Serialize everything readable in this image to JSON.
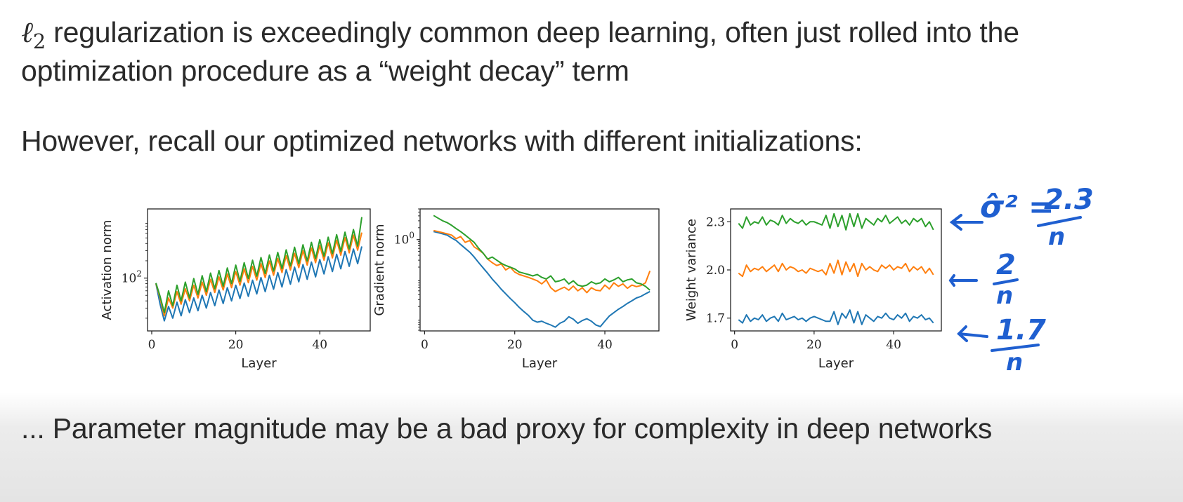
{
  "slide": {
    "line1_symbol": "ℓ",
    "line1_subscript": "2",
    "line1_rest": " regularization is exceedingly common deep learning, often just rolled into the",
    "line2": "optimization procedure as a “weight decay” term",
    "line3": "However, recall our optimized networks with different initializations:",
    "bottom_line": "... Parameter magnitude may be a bad proxy for complexity in deep networks"
  },
  "colors": {
    "blue": "#1f77b4",
    "orange": "#ff7f0e",
    "green": "#2ca02c",
    "annotation": "#1f5fd0"
  },
  "annotations": {
    "green": {
      "lhs": "σ̂² =",
      "num": "2.3",
      "den": "n"
    },
    "orange": {
      "num": "2",
      "den": "n"
    },
    "blue": {
      "num": "1.7",
      "den": "n"
    }
  },
  "chart_data": [
    {
      "type": "line",
      "title": "",
      "xlabel": "Layer",
      "ylabel": "Activation norm",
      "yscale": "log",
      "xlim": [
        -1,
        52
      ],
      "ylim": [
        12,
        1600
      ],
      "xticks": [
        0,
        20,
        40
      ],
      "yticks": [
        {
          "value": 100,
          "base": "10",
          "exp": "2"
        }
      ],
      "grid": false,
      "x": [
        1,
        2,
        3,
        4,
        5,
        6,
        7,
        8,
        9,
        10,
        11,
        12,
        13,
        14,
        15,
        16,
        17,
        18,
        19,
        20,
        21,
        22,
        23,
        24,
        25,
        26,
        27,
        28,
        29,
        30,
        31,
        32,
        33,
        34,
        35,
        36,
        37,
        38,
        39,
        40,
        41,
        42,
        43,
        44,
        45,
        46,
        47,
        48,
        49,
        50
      ],
      "series": [
        {
          "color": "blue",
          "values": [
            80,
            35,
            18,
            32,
            20,
            38,
            22,
            42,
            25,
            45,
            27,
            50,
            30,
            56,
            33,
            62,
            36,
            68,
            40,
            75,
            44,
            82,
            48,
            92,
            53,
            102,
            58,
            112,
            64,
            125,
            70,
            140,
            78,
            155,
            86,
            172,
            95,
            190,
            105,
            210,
            118,
            235,
            130,
            260,
            145,
            290,
            160,
            320,
            178,
            355
          ]
        },
        {
          "color": "orange",
          "values": [
            80,
            45,
            22,
            45,
            30,
            58,
            35,
            65,
            40,
            75,
            45,
            85,
            50,
            95,
            56,
            105,
            62,
            118,
            68,
            130,
            75,
            145,
            83,
            160,
            92,
            178,
            102,
            198,
            112,
            220,
            125,
            245,
            138,
            270,
            152,
            300,
            168,
            335,
            185,
            370,
            205,
            410,
            225,
            455,
            250,
            505,
            275,
            560,
            305,
            620
          ]
        },
        {
          "color": "green",
          "values": [
            82,
            48,
            25,
            60,
            33,
            75,
            40,
            85,
            45,
            98,
            52,
            110,
            58,
            122,
            65,
            135,
            72,
            150,
            80,
            168,
            88,
            185,
            98,
            205,
            108,
            228,
            120,
            252,
            132,
            280,
            146,
            310,
            162,
            345,
            178,
            380,
            198,
            420,
            218,
            465,
            240,
            515,
            265,
            570,
            292,
            630,
            322,
            700,
            360,
            1150
          ]
        }
      ]
    },
    {
      "type": "line",
      "title": "",
      "xlabel": "Layer",
      "ylabel": "Gradient norm",
      "yscale": "log",
      "xlim": [
        -1,
        52
      ],
      "ylim": [
        0.0048,
        6
      ],
      "xticks": [
        0,
        20,
        40
      ],
      "yticks": [
        {
          "value": 1,
          "base": "10",
          "exp": "0"
        }
      ],
      "grid": false,
      "x": [
        2,
        3,
        4,
        5,
        6,
        7,
        8,
        9,
        10,
        11,
        12,
        13,
        14,
        15,
        16,
        17,
        18,
        19,
        20,
        21,
        22,
        23,
        24,
        25,
        26,
        27,
        28,
        29,
        30,
        31,
        32,
        33,
        34,
        35,
        36,
        37,
        38,
        39,
        40,
        41,
        42,
        43,
        44,
        45,
        46,
        47,
        48,
        49,
        50
      ],
      "series": [
        {
          "color": "blue",
          "values": [
            1.6,
            1.5,
            1.4,
            1.3,
            1.1,
            0.95,
            0.75,
            0.6,
            0.48,
            0.36,
            0.26,
            0.19,
            0.14,
            0.1,
            0.075,
            0.055,
            0.042,
            0.032,
            0.025,
            0.019,
            0.015,
            0.012,
            0.009,
            0.008,
            0.0085,
            0.0075,
            0.0068,
            0.006,
            0.0075,
            0.0085,
            0.011,
            0.0095,
            0.0075,
            0.0088,
            0.0098,
            0.0085,
            0.0068,
            0.0062,
            0.0085,
            0.0115,
            0.014,
            0.017,
            0.02,
            0.024,
            0.028,
            0.033,
            0.036,
            0.042,
            0.048
          ]
        },
        {
          "color": "orange",
          "values": [
            1.7,
            1.6,
            1.5,
            1.4,
            1.3,
            1.05,
            1.2,
            0.85,
            0.95,
            0.65,
            0.55,
            0.45,
            0.32,
            0.26,
            0.22,
            0.24,
            0.17,
            0.2,
            0.15,
            0.13,
            0.12,
            0.11,
            0.1,
            0.09,
            0.075,
            0.095,
            0.06,
            0.048,
            0.055,
            0.062,
            0.052,
            0.066,
            0.05,
            0.06,
            0.045,
            0.06,
            0.052,
            0.05,
            0.07,
            0.056,
            0.08,
            0.065,
            0.075,
            0.058,
            0.07,
            0.064,
            0.068,
            0.08,
            0.16
          ]
        },
        {
          "color": "green",
          "values": [
            4.1,
            3.5,
            3.0,
            2.7,
            2.3,
            1.9,
            1.6,
            1.3,
            1.05,
            0.85,
            0.6,
            0.45,
            0.32,
            0.36,
            0.3,
            0.25,
            0.22,
            0.2,
            0.18,
            0.15,
            0.14,
            0.13,
            0.12,
            0.13,
            0.11,
            0.1,
            0.12,
            0.085,
            0.09,
            0.1,
            0.075,
            0.09,
            0.07,
            0.065,
            0.07,
            0.085,
            0.075,
            0.08,
            0.1,
            0.085,
            0.095,
            0.11,
            0.085,
            0.095,
            0.1,
            0.08,
            0.075,
            0.065,
            0.052
          ]
        }
      ]
    },
    {
      "type": "line",
      "title": "",
      "xlabel": "Layer",
      "ylabel": "Weight variance",
      "yscale": "linear",
      "xlim": [
        -1,
        52
      ],
      "ylim": [
        1.62,
        2.38
      ],
      "xticks": [
        0,
        20,
        40
      ],
      "yticks": [
        {
          "value": 1.7,
          "label": "1.7"
        },
        {
          "value": 2.0,
          "label": "2.0"
        },
        {
          "value": 2.3,
          "label": "2.3"
        }
      ],
      "grid": false,
      "x": [
        1,
        2,
        3,
        4,
        5,
        6,
        7,
        8,
        9,
        10,
        11,
        12,
        13,
        14,
        15,
        16,
        17,
        18,
        19,
        20,
        21,
        22,
        23,
        24,
        25,
        26,
        27,
        28,
        29,
        30,
        31,
        32,
        33,
        34,
        35,
        36,
        37,
        38,
        39,
        40,
        41,
        42,
        43,
        44,
        45,
        46,
        47,
        48,
        49,
        50
      ],
      "series": [
        {
          "color": "blue",
          "values": [
            1.69,
            1.67,
            1.72,
            1.68,
            1.7,
            1.69,
            1.72,
            1.68,
            1.7,
            1.71,
            1.68,
            1.73,
            1.69,
            1.7,
            1.71,
            1.69,
            1.7,
            1.68,
            1.7,
            1.71,
            1.7,
            1.69,
            1.68,
            1.68,
            1.74,
            1.66,
            1.73,
            1.7,
            1.75,
            1.67,
            1.74,
            1.66,
            1.72,
            1.7,
            1.68,
            1.71,
            1.7,
            1.73,
            1.7,
            1.69,
            1.72,
            1.7,
            1.73,
            1.68,
            1.71,
            1.7,
            1.72,
            1.69,
            1.7,
            1.67
          ]
        },
        {
          "color": "orange",
          "values": [
            1.98,
            1.96,
            2.03,
            1.99,
            2.01,
            2.0,
            2.02,
            1.99,
            2.01,
            2.03,
            1.99,
            2.04,
            2.0,
            2.02,
            2.01,
            1.99,
            2.0,
            1.98,
            2.01,
            2.0,
            1.99,
            2.0,
            1.97,
            2.04,
            1.98,
            2.06,
            1.97,
            2.05,
            1.99,
            2.04,
            1.96,
            2.04,
            2.0,
            2.02,
            2.0,
            1.99,
            2.03,
            2.01,
            2.03,
            2.0,
            2.02,
            2.01,
            2.04,
            1.99,
            2.02,
            2.0,
            2.02,
            1.98,
            2.01,
            1.97
          ]
        },
        {
          "color": "green",
          "values": [
            2.29,
            2.26,
            2.33,
            2.28,
            2.3,
            2.29,
            2.33,
            2.28,
            2.31,
            2.3,
            2.28,
            2.34,
            2.29,
            2.32,
            2.3,
            2.29,
            2.31,
            2.28,
            2.3,
            2.3,
            2.29,
            2.28,
            2.34,
            2.26,
            2.35,
            2.27,
            2.34,
            2.25,
            2.35,
            2.27,
            2.35,
            2.26,
            2.32,
            2.3,
            2.28,
            2.32,
            2.3,
            2.34,
            2.29,
            2.31,
            2.33,
            2.29,
            2.31,
            2.28,
            2.32,
            2.3,
            2.32,
            2.27,
            2.3,
            2.25
          ]
        }
      ]
    }
  ]
}
